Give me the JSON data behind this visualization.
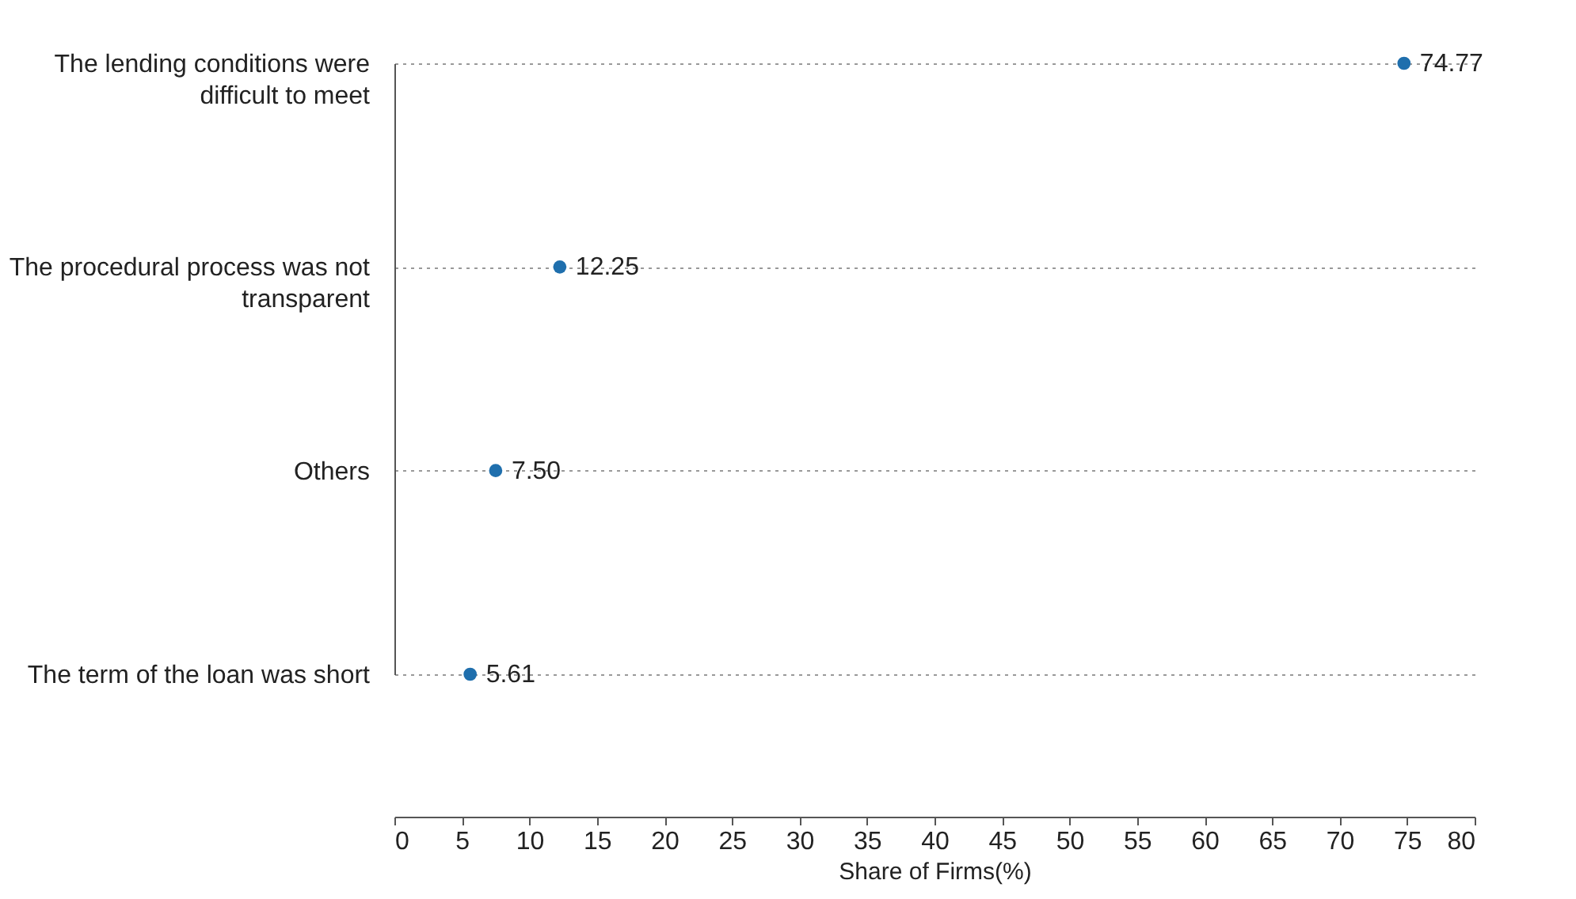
{
  "chart_data": {
    "type": "scatter",
    "orientation": "horizontal",
    "xlabel": "Share of Firms(%)",
    "categories": [
      "The lending conditions were difficult to meet",
      "The procedural process was not transparent",
      "Others",
      "The term of the loan was short"
    ],
    "values": [
      74.77,
      12.25,
      7.5,
      5.61
    ],
    "value_labels": [
      "74.77",
      "12.25",
      "7.50",
      "5.61"
    ],
    "color": "#1f6fad",
    "marker": "circle",
    "grid": "y",
    "xlim": [
      0,
      80
    ],
    "xticks": [
      0,
      5,
      10,
      15,
      20,
      25,
      30,
      35,
      40,
      45,
      50,
      55,
      60,
      65,
      70,
      75,
      80
    ]
  }
}
